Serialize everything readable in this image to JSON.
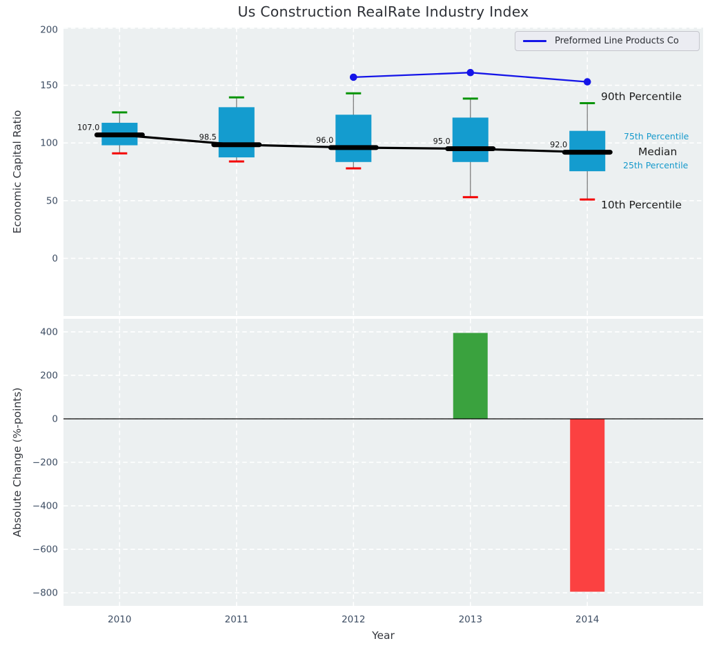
{
  "title": "Us Construction RealRate Industry Index",
  "style": {
    "plot_background": "#ecf0f1",
    "grid_color": "#ffffff",
    "tick_label_color": "#3d4d63",
    "text_color": "#1c1c1c",
    "accent_cyan": "#1599cb"
  },
  "chart_data": [
    {
      "type": "box",
      "title": "Us Construction RealRate Industry Index",
      "ylabel": "Economic Capital Ratio",
      "xlim": [
        2009.52,
        2014.99
      ],
      "ylim": [
        -50,
        200
      ],
      "yticks": [
        200,
        150,
        100,
        50,
        0
      ],
      "grid": true,
      "categories": [
        2010,
        2011,
        2012,
        2013,
        2014
      ],
      "boxes": [
        {
          "year": 2010,
          "p10": 91,
          "p25": 98,
          "median": 107.0,
          "p75": 117.5,
          "p90": 126.5,
          "median_label": "107.0"
        },
        {
          "year": 2011,
          "p10": 84,
          "p25": 87.5,
          "median": 98.5,
          "p75": 131,
          "p90": 139.5,
          "median_label": "98.5"
        },
        {
          "year": 2012,
          "p10": 78,
          "p25": 83.5,
          "median": 96.0,
          "p75": 124.5,
          "p90": 143,
          "median_label": "96.0"
        },
        {
          "year": 2013,
          "p10": 53,
          "p25": 83.5,
          "median": 95.0,
          "p75": 122,
          "p90": 138.5,
          "median_label": "95.0"
        },
        {
          "year": 2014,
          "p10": 51,
          "p25": 75.5,
          "median": 92.0,
          "p75": 110.5,
          "p90": 134.5,
          "median_label": "92.0"
        }
      ],
      "series": [
        {
          "name": "Preformed Line Products Co",
          "x": [
            2012,
            2013,
            2014
          ],
          "y": [
            157,
            161,
            153
          ],
          "color": "#1414e8"
        }
      ],
      "legend": {
        "label": "Preformed Line Products Co",
        "position": "upper right"
      },
      "annotations": [
        {
          "text": "90th Percentile",
          "color": "#1c1c1c",
          "size": "large"
        },
        {
          "text": "75th Percentile",
          "color": "#1599cb",
          "size": "small"
        },
        {
          "text": "Median",
          "color": "#1c1c1c",
          "size": "large"
        },
        {
          "text": "25th Percentile",
          "color": "#1599cb",
          "size": "small"
        },
        {
          "text": "10th Percentile",
          "color": "#1c1c1c",
          "size": "large"
        }
      ],
      "colors": {
        "box_fill": "#149ccf",
        "cap_top": "#079407",
        "cap_bottom": "#f40000",
        "whisker": "#7d7d7d",
        "median_line": "#000000",
        "company_line": "#1414e8"
      }
    },
    {
      "type": "bar",
      "ylabel": "Absolute Change (%-points)",
      "xlabel": "Year",
      "categories": [
        2010,
        2011,
        2012,
        2013,
        2014
      ],
      "values": [
        0,
        0,
        0,
        395,
        -795
      ],
      "bar_colors": [
        null,
        null,
        null,
        "#3aa23e",
        "#fb4141"
      ],
      "ylim": [
        -860,
        460
      ],
      "yticks": [
        400,
        200,
        0,
        -200,
        -400,
        -600,
        -800
      ],
      "zero_line": true,
      "grid": true
    }
  ]
}
